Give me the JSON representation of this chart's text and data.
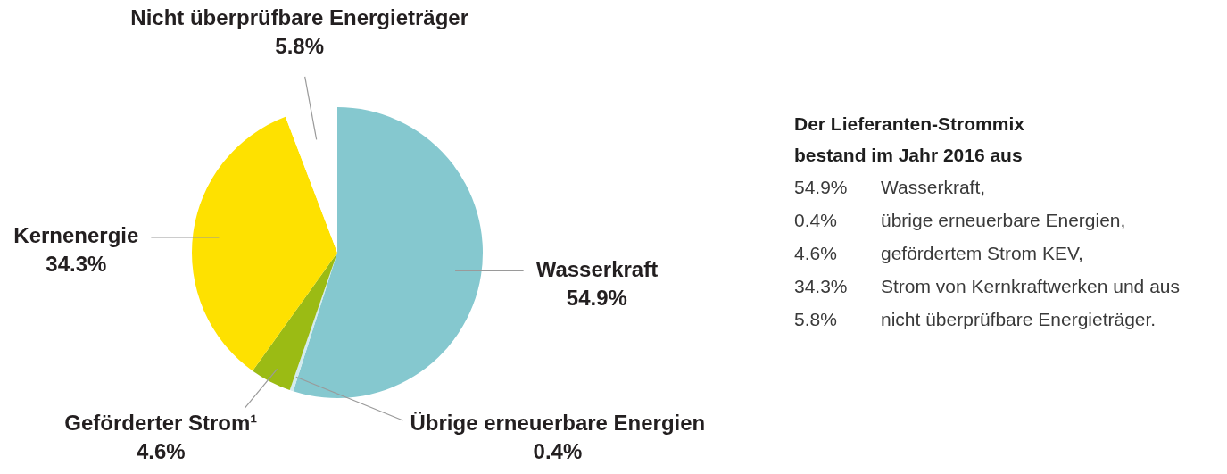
{
  "chart_data": [
    {
      "type": "pie",
      "categories": [
        "Wasserkraft",
        "Übrige erneuerbare Energien",
        "Geförderter Strom¹",
        "Kernenergie",
        "Nicht überprüfbare Energieträger"
      ],
      "values": [
        54.9,
        0.4,
        4.6,
        34.3,
        5.8
      ],
      "colors": [
        "#85c8cf",
        "#d3ebee",
        "#9bbb14",
        "#fee100",
        "#ffffff"
      ],
      "value_labels": [
        "54.9%",
        "0.4%",
        "4.6%",
        "34.3%",
        "5.8%"
      ]
    },
    {
      "type": "other",
      "title": "Der Lieferanten-Strommix bestand im Jahr 2016 aus",
      "annotations": [
        "54.9%\tWasserkraft,",
        "0.4%\tübrige erneuerbare Energien,",
        "4.6%\tgefördertem Strom KEV,",
        "34.3%\tStrom von Kernkraftwerken und aus",
        "5.8%\tnicht überprüfbare Energieträger."
      ]
    }
  ]
}
